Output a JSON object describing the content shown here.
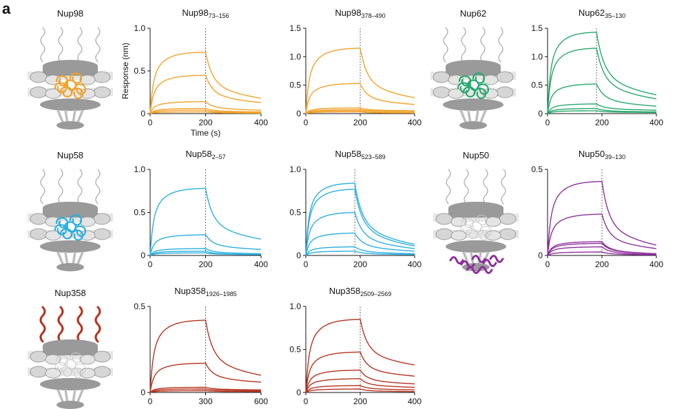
{
  "figure": {
    "panel_letter": "a"
  },
  "colors": {
    "Nup98": "#f2a127",
    "Nup62": "#25a86b",
    "Nup58": "#29aee0",
    "Nup50": "#8e2f9c",
    "Nup358": "#b5321e",
    "scaffold_dark": "#9a9a9a",
    "scaffold_light": "#d6d6d6",
    "band": "#e6e6e6",
    "fg_gray": "#a8a8a8"
  },
  "schematics": [
    {
      "label": "Nup98",
      "highlight": "central"
    },
    {
      "label": "Nup62",
      "highlight": "central"
    },
    {
      "label": "Nup58",
      "highlight": "central"
    },
    {
      "label": "Nup50",
      "highlight": "nuclear-basket"
    },
    {
      "label": "Nup358",
      "highlight": "cytoplasmic-filaments"
    }
  ],
  "chart_data": [
    {
      "type": "line",
      "title": "Nup98",
      "subscript": "73–156",
      "color": "Nup98",
      "ylabel": "Response (nm)",
      "xlabel": "Time (s)",
      "xlim": [
        0,
        400
      ],
      "xticks": [
        0,
        200,
        400
      ],
      "ylim": [
        0,
        1.0
      ],
      "yticks": [
        0,
        0.5,
        1.0
      ],
      "yticklabels": [
        "0",
        "0.5",
        "1.0"
      ],
      "association_end": 200,
      "series": [
        {
          "name": "c1",
          "plateau": 0.72,
          "end": 0.18
        },
        {
          "name": "c2",
          "plateau": 0.45,
          "end": 0.13
        },
        {
          "name": "c3",
          "plateau": 0.14,
          "end": 0.04
        },
        {
          "name": "c4",
          "plateau": 0.06,
          "end": 0.02
        },
        {
          "name": "c5",
          "plateau": 0.04,
          "end": 0.01
        },
        {
          "name": "c6",
          "plateau": 0.02,
          "end": 0.005
        }
      ]
    },
    {
      "type": "line",
      "title": "Nup98",
      "subscript": "378–490",
      "color": "Nup98",
      "ylabel": "",
      "xlabel": "",
      "xlim": [
        0,
        400
      ],
      "xticks": [
        0,
        200,
        400
      ],
      "ylim": [
        0,
        1.5
      ],
      "yticks": [
        0,
        0.5,
        1.0,
        1.5
      ],
      "yticklabels": [
        "0",
        "0.5",
        "1.0",
        "1.5"
      ],
      "association_end": 200,
      "series": [
        {
          "name": "c1",
          "plateau": 1.15,
          "end": 0.28
        },
        {
          "name": "c2",
          "plateau": 0.53,
          "end": 0.16
        },
        {
          "name": "c3",
          "plateau": 0.1,
          "end": 0.05
        },
        {
          "name": "c4",
          "plateau": 0.07,
          "end": 0.04
        },
        {
          "name": "c5",
          "plateau": 0.05,
          "end": 0.02
        },
        {
          "name": "c6",
          "plateau": 0.03,
          "end": 0.01
        }
      ]
    },
    {
      "type": "line",
      "title": "Nup62",
      "subscript": "35–130",
      "color": "Nup62",
      "ylabel": "",
      "xlabel": "",
      "xlim": [
        0,
        400
      ],
      "xticks": [
        0,
        200,
        400
      ],
      "ylim": [
        0,
        1.5
      ],
      "yticks": [
        0,
        0.5,
        1.0,
        1.5
      ],
      "yticklabels": [
        "0",
        "0.5",
        "1.0",
        "1.5"
      ],
      "association_end": 180,
      "series": [
        {
          "name": "c1",
          "plateau": 1.43,
          "end": 0.33
        },
        {
          "name": "c2",
          "plateau": 1.15,
          "end": 0.26
        },
        {
          "name": "c3",
          "plateau": 0.52,
          "end": 0.13
        },
        {
          "name": "c4",
          "plateau": 0.17,
          "end": 0.06
        },
        {
          "name": "c5",
          "plateau": 0.09,
          "end": 0.03
        },
        {
          "name": "c6",
          "plateau": 0.05,
          "end": 0.02
        }
      ]
    },
    {
      "type": "line",
      "title": "Nup58",
      "subscript": "2–57",
      "color": "Nup58",
      "ylabel": "",
      "xlabel": "",
      "xlim": [
        0,
        400
      ],
      "xticks": [
        0,
        200,
        400
      ],
      "ylim": [
        0,
        1.0
      ],
      "yticks": [
        0,
        0.5,
        1.0
      ],
      "yticklabels": [
        "0",
        "0.5",
        "1.0"
      ],
      "association_end": 200,
      "series": [
        {
          "name": "c1",
          "plateau": 0.78,
          "end": 0.19
        },
        {
          "name": "c2",
          "plateau": 0.24,
          "end": 0.07
        },
        {
          "name": "c3",
          "plateau": 0.08,
          "end": 0.02
        },
        {
          "name": "c4",
          "plateau": 0.05,
          "end": 0.01
        },
        {
          "name": "c5",
          "plateau": 0.03,
          "end": 0.01
        }
      ]
    },
    {
      "type": "line",
      "title": "Nup58",
      "subscript": "523–589",
      "color": "Nup58",
      "ylabel": "",
      "xlabel": "",
      "xlim": [
        0,
        400
      ],
      "xticks": [
        0,
        200,
        400
      ],
      "ylim": [
        0,
        1.0
      ],
      "yticks": [
        0,
        0.5,
        1.0
      ],
      "yticklabels": [
        "0",
        "0.5",
        "1.0"
      ],
      "association_end": 180,
      "series": [
        {
          "name": "c1",
          "plateau": 0.84,
          "end": 0.13
        },
        {
          "name": "c2",
          "plateau": 0.77,
          "end": 0.11
        },
        {
          "name": "c3",
          "plateau": 0.5,
          "end": 0.08
        },
        {
          "name": "c4",
          "plateau": 0.26,
          "end": 0.05
        },
        {
          "name": "c5",
          "plateau": 0.1,
          "end": 0.02
        },
        {
          "name": "c6",
          "plateau": 0.05,
          "end": 0.01
        }
      ]
    },
    {
      "type": "line",
      "title": "Nup50",
      "subscript": "39–130",
      "color": "Nup50",
      "ylabel": "",
      "xlabel": "",
      "xlim": [
        0,
        400
      ],
      "xticks": [
        0,
        200,
        400
      ],
      "ylim": [
        0,
        0.5
      ],
      "yticks": [
        0,
        0.5
      ],
      "yticklabels": [
        "0",
        "0.5"
      ],
      "association_end": 200,
      "series": [
        {
          "name": "c1",
          "plateau": 0.43,
          "end": 0.06
        },
        {
          "name": "c2",
          "plateau": 0.24,
          "end": 0.04
        },
        {
          "name": "c3",
          "plateau": 0.08,
          "end": 0.01
        },
        {
          "name": "c4",
          "plateau": 0.07,
          "end": 0.01
        },
        {
          "name": "c5",
          "plateau": 0.05,
          "end": 0.005
        },
        {
          "name": "c6",
          "plateau": 0.02,
          "end": 0.003
        }
      ]
    },
    {
      "type": "line",
      "title": "Nup358",
      "subscript": "1926–1985",
      "color": "Nup358",
      "ylabel": "",
      "xlabel": "",
      "xlim": [
        0,
        600
      ],
      "xticks": [
        0,
        300,
        600
      ],
      "ylim": [
        0,
        0.5
      ],
      "yticks": [
        0,
        0.5
      ],
      "yticklabels": [
        "0",
        "0.5"
      ],
      "association_end": 300,
      "series": [
        {
          "name": "c1",
          "plateau": 0.42,
          "end": 0.1
        },
        {
          "name": "c2",
          "plateau": 0.17,
          "end": 0.06
        },
        {
          "name": "c3",
          "plateau": 0.03,
          "end": 0.015
        },
        {
          "name": "c4",
          "plateau": 0.02,
          "end": 0.01
        },
        {
          "name": "c5",
          "plateau": 0.01,
          "end": 0.005
        }
      ]
    },
    {
      "type": "line",
      "title": "Nup358",
      "subscript": "2509–2569",
      "color": "Nup358",
      "ylabel": "",
      "xlabel": "",
      "xlim": [
        0,
        400
      ],
      "xticks": [
        0,
        200,
        400
      ],
      "ylim": [
        0,
        1.0
      ],
      "yticks": [
        0,
        0.5,
        1.0
      ],
      "yticklabels": [
        "0",
        "0.5",
        "1.0"
      ],
      "association_end": 200,
      "series": [
        {
          "name": "c1",
          "plateau": 0.85,
          "end": 0.32
        },
        {
          "name": "c2",
          "plateau": 0.47,
          "end": 0.19
        },
        {
          "name": "c3",
          "plateau": 0.26,
          "end": 0.1
        },
        {
          "name": "c4",
          "plateau": 0.16,
          "end": 0.06
        },
        {
          "name": "c5",
          "plateau": 0.08,
          "end": 0.03
        },
        {
          "name": "c6",
          "plateau": 0.04,
          "end": 0.01
        }
      ]
    }
  ]
}
